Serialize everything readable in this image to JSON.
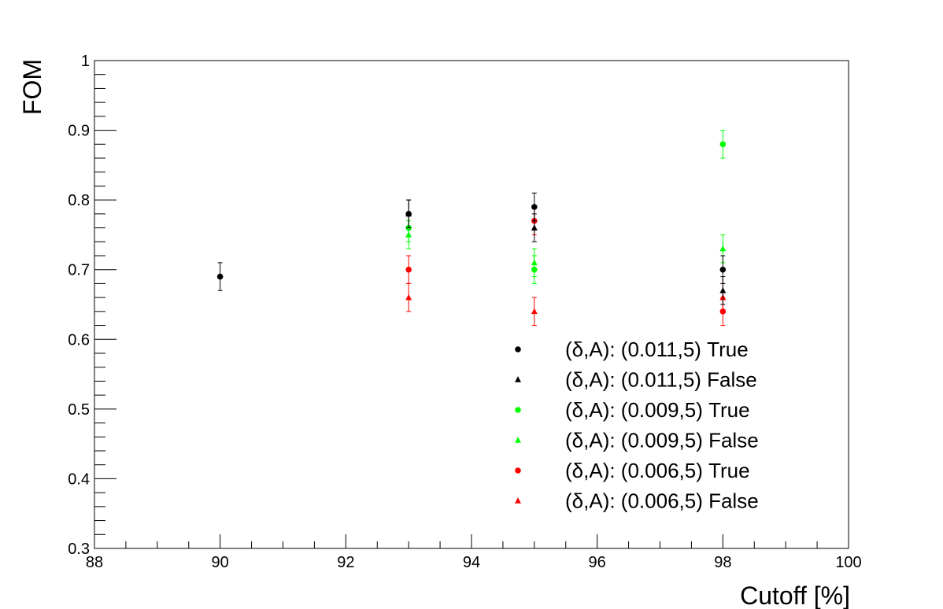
{
  "chart_data": {
    "type": "scatter",
    "title": "",
    "xlabel": "Cutoff [%]",
    "ylabel": "FOM",
    "xlim": [
      88,
      100
    ],
    "ylim": [
      0.3,
      1
    ],
    "x_ticks": [
      "88",
      "90",
      "92",
      "94",
      "96",
      "98",
      "100"
    ],
    "y_ticks": [
      "0.3",
      "0.4",
      "0.5",
      "0.6",
      "0.7",
      "0.8",
      "0.9",
      "1"
    ],
    "grid": false,
    "legend_position": "bottom-right",
    "error_bars": true,
    "series": [
      {
        "name": "(δ,A): (0.011,5) True",
        "color": "#000000",
        "marker": "circle",
        "points": [
          {
            "x": 90,
            "y": 0.69,
            "err": 0.02
          },
          {
            "x": 93,
            "y": 0.78,
            "err": 0.02
          },
          {
            "x": 95,
            "y": 0.79,
            "err": 0.02
          },
          {
            "x": 98,
            "y": 0.7,
            "err": 0.02
          }
        ]
      },
      {
        "name": "(δ,A): (0.011,5) False",
        "color": "#000000",
        "marker": "triangle",
        "points": [
          {
            "x": 93,
            "y": 0.78,
            "err": 0.02
          },
          {
            "x": 95,
            "y": 0.76,
            "err": 0.02
          },
          {
            "x": 98,
            "y": 0.67,
            "err": 0.02
          }
        ]
      },
      {
        "name": "(δ,A): (0.009,5) True",
        "color": "#00ff00",
        "marker": "circle",
        "points": [
          {
            "x": 93,
            "y": 0.76,
            "err": 0.02
          },
          {
            "x": 95,
            "y": 0.7,
            "err": 0.02
          },
          {
            "x": 98,
            "y": 0.88,
            "err": 0.02
          }
        ]
      },
      {
        "name": "(δ,A): (0.009,5) False",
        "color": "#00ff00",
        "marker": "triangle",
        "points": [
          {
            "x": 93,
            "y": 0.75,
            "err": 0.02
          },
          {
            "x": 95,
            "y": 0.71,
            "err": 0.02
          },
          {
            "x": 98,
            "y": 0.73,
            "err": 0.02
          }
        ]
      },
      {
        "name": "(δ,A): (0.006,5) True",
        "color": "#ff0000",
        "marker": "circle",
        "points": [
          {
            "x": 93,
            "y": 0.7,
            "err": 0.02
          },
          {
            "x": 95,
            "y": 0.77,
            "err": 0.02
          },
          {
            "x": 98,
            "y": 0.64,
            "err": 0.02
          }
        ]
      },
      {
        "name": "(δ,A): (0.006,5) False",
        "color": "#ff0000",
        "marker": "triangle",
        "points": [
          {
            "x": 93,
            "y": 0.66,
            "err": 0.02
          },
          {
            "x": 95,
            "y": 0.64,
            "err": 0.02
          },
          {
            "x": 98,
            "y": 0.66,
            "err": 0.02
          }
        ]
      }
    ]
  }
}
